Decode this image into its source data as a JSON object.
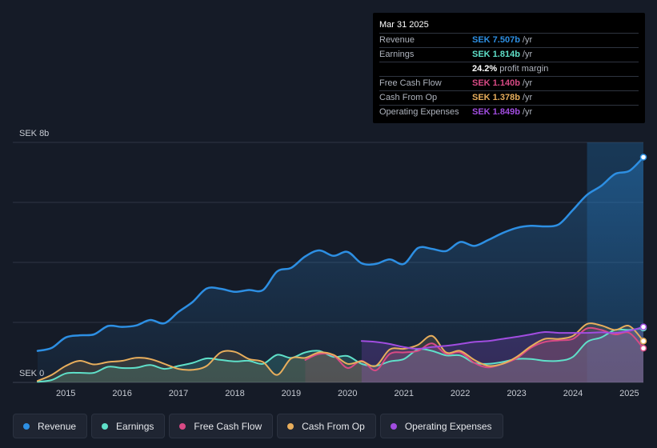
{
  "colors": {
    "revenue": "#2d8fe3",
    "earnings": "#5fe0c9",
    "free_cash_flow": "#d84a85",
    "cash_from_op": "#e8ae5c",
    "operating_expenses": "#a14de0"
  },
  "tooltip": {
    "date": "Mar 31 2025",
    "rows": [
      {
        "label": "Revenue",
        "value": "SEK 7.507b",
        "unit": "/yr"
      },
      {
        "label": "Earnings",
        "value": "SEK 1.814b",
        "unit": "/yr"
      },
      {
        "label": "",
        "value": "24.2%",
        "unit": "profit margin"
      },
      {
        "label": "Free Cash Flow",
        "value": "SEK 1.140b",
        "unit": "/yr"
      },
      {
        "label": "Cash From Op",
        "value": "SEK 1.378b",
        "unit": "/yr"
      },
      {
        "label": "Operating Expenses",
        "value": "SEK 1.849b",
        "unit": "/yr"
      }
    ]
  },
  "legend": [
    {
      "label": "Revenue",
      "key": "revenue"
    },
    {
      "label": "Earnings",
      "key": "earnings"
    },
    {
      "label": "Free Cash Flow",
      "key": "free_cash_flow"
    },
    {
      "label": "Cash From Op",
      "key": "cash_from_op"
    },
    {
      "label": "Operating Expenses",
      "key": "operating_expenses"
    }
  ],
  "chart_data": {
    "type": "line",
    "ylabel_top": "SEK 8b",
    "ylabel_bottom": "SEK 0",
    "ylim": [
      0,
      8
    ],
    "unit": "SEK billions",
    "xlim": [
      2014.5,
      2025.25
    ],
    "x_ticks": [
      "2015",
      "2016",
      "2017",
      "2018",
      "2019",
      "2020",
      "2021",
      "2022",
      "2023",
      "2024",
      "2025"
    ],
    "grid": true,
    "series": [
      {
        "name": "Revenue",
        "key": "revenue",
        "x": [
          2014.5,
          2014.75,
          2015.0,
          2015.25,
          2015.5,
          2015.75,
          2016.0,
          2016.25,
          2016.5,
          2016.75,
          2017.0,
          2017.25,
          2017.5,
          2017.75,
          2018.0,
          2018.25,
          2018.5,
          2018.75,
          2019.0,
          2019.25,
          2019.5,
          2019.75,
          2020.0,
          2020.25,
          2020.5,
          2020.75,
          2021.0,
          2021.25,
          2021.5,
          2021.75,
          2022.0,
          2022.25,
          2022.5,
          2022.75,
          2023.0,
          2023.25,
          2023.5,
          2023.75,
          2024.0,
          2024.25,
          2024.5,
          2024.75,
          2025.0,
          2025.25
        ],
        "values": [
          1.05,
          1.15,
          1.5,
          1.57,
          1.6,
          1.88,
          1.85,
          1.9,
          2.08,
          1.97,
          2.35,
          2.68,
          3.13,
          3.12,
          3.02,
          3.08,
          3.08,
          3.7,
          3.82,
          4.2,
          4.4,
          4.22,
          4.35,
          3.97,
          3.95,
          4.1,
          3.95,
          4.48,
          4.45,
          4.38,
          4.68,
          4.55,
          4.75,
          4.98,
          5.15,
          5.22,
          5.2,
          5.27,
          5.75,
          6.25,
          6.55,
          6.95,
          7.05,
          7.507
        ]
      },
      {
        "name": "Earnings",
        "key": "earnings",
        "x": [
          2014.5,
          2014.75,
          2015.0,
          2015.25,
          2015.5,
          2015.75,
          2016.0,
          2016.25,
          2016.5,
          2016.75,
          2017.0,
          2017.25,
          2017.5,
          2017.75,
          2018.0,
          2018.25,
          2018.5,
          2018.75,
          2019.0,
          2019.25,
          2019.5,
          2019.75,
          2020.0,
          2020.25,
          2020.5,
          2020.75,
          2021.0,
          2021.25,
          2021.5,
          2021.75,
          2022.0,
          2022.25,
          2022.5,
          2022.75,
          2023.0,
          2023.25,
          2023.5,
          2023.75,
          2024.0,
          2024.25,
          2024.5,
          2024.75,
          2025.0,
          2025.25
        ],
        "values": [
          0.02,
          0.08,
          0.3,
          0.32,
          0.32,
          0.52,
          0.48,
          0.49,
          0.58,
          0.45,
          0.55,
          0.65,
          0.8,
          0.75,
          0.7,
          0.72,
          0.62,
          0.92,
          0.82,
          1.0,
          1.05,
          0.85,
          0.88,
          0.62,
          0.55,
          0.7,
          0.78,
          1.1,
          1.05,
          0.9,
          0.9,
          0.65,
          0.62,
          0.68,
          0.78,
          0.78,
          0.72,
          0.72,
          0.85,
          1.35,
          1.5,
          1.75,
          1.75,
          1.814
        ]
      },
      {
        "name": "Free Cash Flow",
        "key": "free_cash_flow",
        "x": [
          2019.25,
          2019.5,
          2019.75,
          2020.0,
          2020.25,
          2020.5,
          2020.75,
          2021.0,
          2021.25,
          2021.5,
          2021.75,
          2022.0,
          2022.25,
          2022.5,
          2022.75,
          2023.0,
          2023.25,
          2023.5,
          2023.75,
          2024.0,
          2024.25,
          2024.5,
          2024.75,
          2025.0,
          2025.25
        ],
        "values": [
          0.75,
          0.95,
          0.9,
          0.48,
          0.72,
          0.4,
          0.95,
          1.0,
          1.05,
          1.3,
          0.95,
          1.0,
          0.65,
          0.5,
          0.62,
          0.8,
          1.15,
          1.35,
          1.4,
          1.45,
          1.8,
          1.75,
          1.6,
          1.65,
          1.14
        ]
      },
      {
        "name": "Cash From Op",
        "key": "cash_from_op",
        "x": [
          2014.5,
          2014.75,
          2015.0,
          2015.25,
          2015.5,
          2015.75,
          2016.0,
          2016.25,
          2016.5,
          2016.75,
          2017.0,
          2017.25,
          2017.5,
          2017.75,
          2018.0,
          2018.25,
          2018.5,
          2018.75,
          2019.0,
          2019.25,
          2019.5,
          2019.75,
          2020.0,
          2020.25,
          2020.5,
          2020.75,
          2021.0,
          2021.25,
          2021.5,
          2021.75,
          2022.0,
          2022.25,
          2022.5,
          2022.75,
          2023.0,
          2023.25,
          2023.5,
          2023.75,
          2024.0,
          2024.25,
          2024.5,
          2024.75,
          2025.0,
          2025.25
        ],
        "values": [
          0.05,
          0.25,
          0.55,
          0.72,
          0.6,
          0.68,
          0.72,
          0.82,
          0.78,
          0.62,
          0.45,
          0.42,
          0.55,
          1.0,
          1.02,
          0.78,
          0.68,
          0.25,
          0.8,
          0.82,
          1.0,
          0.92,
          0.62,
          0.7,
          0.55,
          1.1,
          1.12,
          1.25,
          1.55,
          1.0,
          1.05,
          0.75,
          0.55,
          0.62,
          0.85,
          1.2,
          1.45,
          1.45,
          1.55,
          1.95,
          1.9,
          1.75,
          1.88,
          1.378
        ]
      },
      {
        "name": "Operating Expenses",
        "key": "operating_expenses",
        "x": [
          2020.25,
          2020.5,
          2020.75,
          2021.0,
          2021.25,
          2021.5,
          2021.75,
          2022.0,
          2022.25,
          2022.5,
          2022.75,
          2023.0,
          2023.25,
          2023.5,
          2023.75,
          2024.0,
          2024.25,
          2024.5,
          2024.75,
          2025.0,
          2025.25
        ],
        "values": [
          1.38,
          1.35,
          1.28,
          1.18,
          1.12,
          1.18,
          1.22,
          1.28,
          1.35,
          1.38,
          1.45,
          1.52,
          1.6,
          1.68,
          1.65,
          1.65,
          1.65,
          1.67,
          1.65,
          1.72,
          1.849
        ]
      }
    ]
  }
}
